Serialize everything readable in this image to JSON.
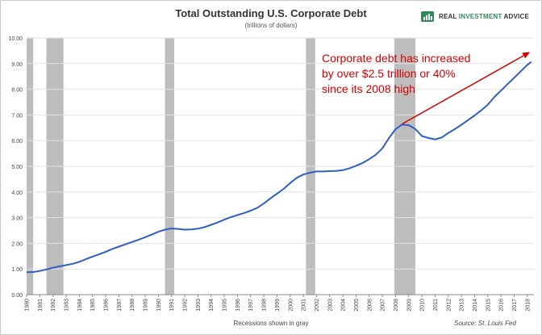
{
  "chart_data": {
    "type": "line",
    "title": "Total Outstanding U.S. Corporate Debt",
    "subtitle": "(trillions of dollars)",
    "xlabel": "",
    "ylabel": "",
    "xlim": [
      1980,
      2018.5
    ],
    "ylim": [
      0,
      10
    ],
    "yticks": [
      "0.00",
      "1.00",
      "2.00",
      "3.00",
      "4.00",
      "5.00",
      "6.00",
      "7.00",
      "8.00",
      "9.00",
      "10.00"
    ],
    "xticks": [
      "1980",
      "1981",
      "1982",
      "1983",
      "1984",
      "1985",
      "1986",
      "1987",
      "1988",
      "1989",
      "1990",
      "1991",
      "1992",
      "1993",
      "1994",
      "1995",
      "1996",
      "1997",
      "1998",
      "1999",
      "2000",
      "2001",
      "2002",
      "2003",
      "2004",
      "2005",
      "2006",
      "2007",
      "2008",
      "2009",
      "2010",
      "2011",
      "2012",
      "2013",
      "2014",
      "2015",
      "2016",
      "2017",
      "2018"
    ],
    "grid": "horizontal",
    "recessions": [
      [
        1980.0,
        1980.5
      ],
      [
        1981.5,
        1982.8
      ],
      [
        1990.5,
        1991.2
      ],
      [
        2001.2,
        2001.9
      ],
      [
        2007.9,
        2009.5
      ]
    ],
    "series": [
      {
        "color": "#2f5ec4",
        "points": [
          [
            1980.0,
            0.87
          ],
          [
            1980.5,
            0.88
          ],
          [
            1981.0,
            0.92
          ],
          [
            1981.5,
            0.98
          ],
          [
            1982.0,
            1.05
          ],
          [
            1982.5,
            1.1
          ],
          [
            1983.0,
            1.15
          ],
          [
            1983.5,
            1.2
          ],
          [
            1984.0,
            1.28
          ],
          [
            1984.5,
            1.38
          ],
          [
            1985.0,
            1.48
          ],
          [
            1985.5,
            1.57
          ],
          [
            1986.0,
            1.67
          ],
          [
            1986.5,
            1.78
          ],
          [
            1987.0,
            1.87
          ],
          [
            1987.5,
            1.96
          ],
          [
            1988.0,
            2.05
          ],
          [
            1988.5,
            2.14
          ],
          [
            1989.0,
            2.24
          ],
          [
            1989.5,
            2.34
          ],
          [
            1990.0,
            2.45
          ],
          [
            1990.5,
            2.53
          ],
          [
            1991.0,
            2.58
          ],
          [
            1991.5,
            2.56
          ],
          [
            1992.0,
            2.53
          ],
          [
            1992.5,
            2.54
          ],
          [
            1993.0,
            2.57
          ],
          [
            1993.5,
            2.63
          ],
          [
            1994.0,
            2.72
          ],
          [
            1994.5,
            2.81
          ],
          [
            1995.0,
            2.92
          ],
          [
            1995.5,
            3.02
          ],
          [
            1996.0,
            3.1
          ],
          [
            1996.5,
            3.18
          ],
          [
            1997.0,
            3.27
          ],
          [
            1997.5,
            3.38
          ],
          [
            1998.0,
            3.55
          ],
          [
            1998.5,
            3.75
          ],
          [
            1999.0,
            3.93
          ],
          [
            1999.5,
            4.12
          ],
          [
            2000.0,
            4.35
          ],
          [
            2000.5,
            4.55
          ],
          [
            2001.0,
            4.68
          ],
          [
            2001.5,
            4.75
          ],
          [
            2002.0,
            4.8
          ],
          [
            2002.5,
            4.8
          ],
          [
            2003.0,
            4.81
          ],
          [
            2003.5,
            4.82
          ],
          [
            2004.0,
            4.85
          ],
          [
            2004.5,
            4.92
          ],
          [
            2005.0,
            5.02
          ],
          [
            2005.5,
            5.13
          ],
          [
            2006.0,
            5.28
          ],
          [
            2006.5,
            5.45
          ],
          [
            2007.0,
            5.7
          ],
          [
            2007.5,
            6.1
          ],
          [
            2008.0,
            6.45
          ],
          [
            2008.5,
            6.63
          ],
          [
            2009.0,
            6.6
          ],
          [
            2009.5,
            6.45
          ],
          [
            2010.0,
            6.18
          ],
          [
            2010.5,
            6.1
          ],
          [
            2011.0,
            6.05
          ],
          [
            2011.5,
            6.12
          ],
          [
            2012.0,
            6.3
          ],
          [
            2012.5,
            6.45
          ],
          [
            2013.0,
            6.62
          ],
          [
            2013.5,
            6.8
          ],
          [
            2014.0,
            6.98
          ],
          [
            2014.5,
            7.18
          ],
          [
            2015.0,
            7.4
          ],
          [
            2015.5,
            7.7
          ],
          [
            2016.0,
            7.95
          ],
          [
            2016.5,
            8.2
          ],
          [
            2017.0,
            8.45
          ],
          [
            2017.5,
            8.7
          ],
          [
            2018.0,
            8.95
          ],
          [
            2018.3,
            9.07
          ]
        ]
      }
    ],
    "annotation": {
      "text": "Corporate debt has increased\nby over $2.5 trillion or 40%\nsince its 2008 high",
      "color": "#d40000",
      "arrow_from": [
        2008.5,
        6.65
      ],
      "arrow_to": [
        2018.2,
        9.45
      ]
    }
  },
  "brand": {
    "name_part1": "REAL ",
    "name_part2": "INVESTMENT",
    "name_part3": " ADVICE",
    "accent": "#2e8b57"
  },
  "footer": {
    "left": "Recessions shown in gray",
    "right": "Source: St. Louis Fed"
  }
}
